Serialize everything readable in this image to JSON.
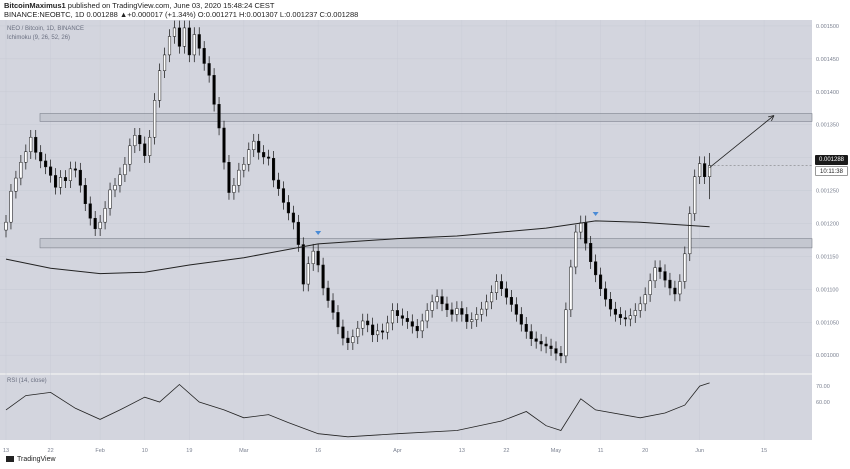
{
  "header": {
    "author": "BitcoinMaximus1",
    "published": "published on TradingView.com, June 03, 2020 15:48:24 CEST",
    "ohlc": "BINANCE:NEOBTC, 1D 0.001288 ▲+0.000017 (+1.34%) O:0.001271 H:0.001307 L:0.001237 C:0.001288"
  },
  "legend": {
    "symbol": "NEO / Bitcoin, 1D, BINANCE",
    "indicator": "Ichimoku (9, 26, 52, 26)",
    "rsi": "RSI (14, close)"
  },
  "price_tags": {
    "last_price": "0.001288",
    "countdown": "10:11:38"
  },
  "footer": {
    "brand": "TradingView"
  },
  "colors": {
    "background": "#d3d5de",
    "candle_up": "#ffffff",
    "candle_down": "#000000",
    "arrow": "#4a8bd6",
    "zone": "#bec1cb"
  },
  "chart_data": {
    "type": "candlestick",
    "symbol": "NEOBTC",
    "interval": "1D",
    "y_axis_ticks": [
      "0.001500",
      "0.001450",
      "0.001400",
      "0.001350",
      "0.001300",
      "0.001250",
      "0.001200",
      "0.001150",
      "0.001100",
      "0.001050",
      "0.001000"
    ],
    "ylim": [
      0.000973,
      0.001509
    ],
    "x_axis_ticks": [
      "13",
      "22",
      "Feb",
      "10",
      "19",
      "Mar",
      "16",
      "Apr",
      "13",
      "22",
      "May",
      "11",
      "20",
      "Jun",
      "15"
    ],
    "x_tick_day_index": [
      0,
      9,
      19,
      28,
      37,
      48,
      63,
      79,
      92,
      101,
      111,
      120,
      129,
      140,
      153
    ],
    "x_date_range": [
      "2020-01-13",
      "2020-06-16"
    ],
    "resistance_zone": [
      0.001355,
      0.001367
    ],
    "support_zone": [
      0.001163,
      0.001177
    ],
    "candles": [
      {
        "date": "2020-01-13",
        "close": 0.001202
      },
      {
        "date": "2020-01-14",
        "close": 0.001249
      },
      {
        "date": "2020-01-15",
        "close": 0.001269
      },
      {
        "date": "2020-01-16",
        "close": 0.001293
      },
      {
        "date": "2020-01-17",
        "close": 0.001309
      },
      {
        "date": "2020-01-18",
        "close": 0.001331
      },
      {
        "date": "2020-01-19",
        "close": 0.001308
      },
      {
        "date": "2020-01-20",
        "close": 0.001295
      },
      {
        "date": "2020-01-21",
        "close": 0.001286
      },
      {
        "date": "2020-01-22",
        "close": 0.001273
      },
      {
        "date": "2020-01-23",
        "close": 0.001255
      },
      {
        "date": "2020-01-24",
        "close": 0.00127
      },
      {
        "date": "2020-01-25",
        "close": 0.001265
      },
      {
        "date": "2020-01-26",
        "close": 0.001283
      },
      {
        "date": "2020-01-27",
        "close": 0.001281
      },
      {
        "date": "2020-01-28",
        "close": 0.001258
      },
      {
        "date": "2020-01-29",
        "close": 0.00123
      },
      {
        "date": "2020-01-30",
        "close": 0.001208
      },
      {
        "date": "2020-01-31",
        "close": 0.001192
      },
      {
        "date": "2020-02-01",
        "close": 0.001202
      },
      {
        "date": "2020-02-02",
        "close": 0.001223
      },
      {
        "date": "2020-02-03",
        "close": 0.001251
      },
      {
        "date": "2020-02-04",
        "close": 0.001258
      },
      {
        "date": "2020-02-05",
        "close": 0.001274
      },
      {
        "date": "2020-02-06",
        "close": 0.00129
      },
      {
        "date": "2020-02-07",
        "close": 0.001318
      },
      {
        "date": "2020-02-08",
        "close": 0.001334
      },
      {
        "date": "2020-02-09",
        "close": 0.001321
      },
      {
        "date": "2020-02-10",
        "close": 0.001303
      },
      {
        "date": "2020-02-11",
        "close": 0.001331
      },
      {
        "date": "2020-02-12",
        "close": 0.001387
      },
      {
        "date": "2020-02-13",
        "close": 0.001432
      },
      {
        "date": "2020-02-14",
        "close": 0.001456
      },
      {
        "date": "2020-02-15",
        "close": 0.001484
      },
      {
        "date": "2020-02-16",
        "close": 0.001497
      },
      {
        "date": "2020-02-17",
        "close": 0.001469
      },
      {
        "date": "2020-02-18",
        "close": 0.001497
      },
      {
        "date": "2020-02-19",
        "close": 0.001456
      },
      {
        "date": "2020-02-20",
        "close": 0.001487
      },
      {
        "date": "2020-02-21",
        "close": 0.001466
      },
      {
        "date": "2020-02-22",
        "close": 0.001443
      },
      {
        "date": "2020-02-23",
        "close": 0.001425
      },
      {
        "date": "2020-02-24",
        "close": 0.001381
      },
      {
        "date": "2020-02-25",
        "close": 0.001345
      },
      {
        "date": "2020-02-26",
        "close": 0.001293
      },
      {
        "date": "2020-02-27",
        "close": 0.001247
      },
      {
        "date": "2020-02-28",
        "close": 0.001258
      },
      {
        "date": "2020-02-29",
        "close": 0.001281
      },
      {
        "date": "2020-03-01",
        "close": 0.00129
      },
      {
        "date": "2020-03-02",
        "close": 0.001312
      },
      {
        "date": "2020-03-03",
        "close": 0.001325
      },
      {
        "date": "2020-03-04",
        "close": 0.001308
      },
      {
        "date": "2020-03-05",
        "close": 0.001301
      },
      {
        "date": "2020-03-06",
        "close": 0.001299
      },
      {
        "date": "2020-03-07",
        "close": 0.001266
      },
      {
        "date": "2020-03-08",
        "close": 0.001253
      },
      {
        "date": "2020-03-09",
        "close": 0.001232
      },
      {
        "date": "2020-03-10",
        "close": 0.001216
      },
      {
        "date": "2020-03-11",
        "close": 0.001202
      },
      {
        "date": "2020-03-12",
        "close": 0.001168
      },
      {
        "date": "2020-03-13",
        "close": 0.001108
      },
      {
        "date": "2020-03-14",
        "close": 0.001139
      },
      {
        "date": "2020-03-15",
        "close": 0.001158
      },
      {
        "date": "2020-03-16",
        "close": 0.001137
      },
      {
        "date": "2020-03-17",
        "close": 0.001102
      },
      {
        "date": "2020-03-18",
        "close": 0.001083
      },
      {
        "date": "2020-03-19",
        "close": 0.001065
      },
      {
        "date": "2020-03-20",
        "close": 0.001043
      },
      {
        "date": "2020-03-21",
        "close": 0.001026
      },
      {
        "date": "2020-03-22",
        "close": 0.001019
      },
      {
        "date": "2020-03-23",
        "close": 0.001028
      },
      {
        "date": "2020-03-24",
        "close": 0.001041
      },
      {
        "date": "2020-03-25",
        "close": 0.001052
      },
      {
        "date": "2020-03-26",
        "close": 0.001046
      },
      {
        "date": "2020-03-27",
        "close": 0.001031
      },
      {
        "date": "2020-03-28",
        "close": 0.001037
      },
      {
        "date": "2020-03-29",
        "close": 0.001035
      },
      {
        "date": "2020-03-30",
        "close": 0.001049
      },
      {
        "date": "2020-03-31",
        "close": 0.001068
      },
      {
        "date": "2020-04-01",
        "close": 0.00106
      },
      {
        "date": "2020-04-02",
        "close": 0.001056
      },
      {
        "date": "2020-04-03",
        "close": 0.001051
      },
      {
        "date": "2020-04-04",
        "close": 0.001044
      },
      {
        "date": "2020-04-05",
        "close": 0.001037
      },
      {
        "date": "2020-04-06",
        "close": 0.001052
      },
      {
        "date": "2020-04-07",
        "close": 0.001068
      },
      {
        "date": "2020-04-08",
        "close": 0.001081
      },
      {
        "date": "2020-04-09",
        "close": 0.001089
      },
      {
        "date": "2020-04-10",
        "close": 0.001078
      },
      {
        "date": "2020-04-11",
        "close": 0.001069
      },
      {
        "date": "2020-04-12",
        "close": 0.001062
      },
      {
        "date": "2020-04-13",
        "close": 0.001071
      },
      {
        "date": "2020-04-14",
        "close": 0.001062
      },
      {
        "date": "2020-04-15",
        "close": 0.001051
      },
      {
        "date": "2020-04-16",
        "close": 0.001054
      },
      {
        "date": "2020-04-17",
        "close": 0.001062
      },
      {
        "date": "2020-04-18",
        "close": 0.00107
      },
      {
        "date": "2020-04-19",
        "close": 0.001081
      },
      {
        "date": "2020-04-20",
        "close": 0.001095
      },
      {
        "date": "2020-04-21",
        "close": 0.001112
      },
      {
        "date": "2020-04-22",
        "close": 0.001101
      },
      {
        "date": "2020-04-23",
        "close": 0.001088
      },
      {
        "date": "2020-04-24",
        "close": 0.001077
      },
      {
        "date": "2020-04-25",
        "close": 0.001062
      },
      {
        "date": "2020-04-26",
        "close": 0.001047
      },
      {
        "date": "2020-04-27",
        "close": 0.001036
      },
      {
        "date": "2020-04-28",
        "close": 0.001025
      },
      {
        "date": "2020-04-29",
        "close": 0.001021
      },
      {
        "date": "2020-04-30",
        "close": 0.001017
      },
      {
        "date": "2020-05-01",
        "close": 0.001014
      },
      {
        "date": "2020-05-02",
        "close": 0.00101
      },
      {
        "date": "2020-05-03",
        "close": 0.001003
      },
      {
        "date": "2020-05-04",
        "close": 0.000999
      },
      {
        "date": "2020-05-05",
        "close": 0.001069
      },
      {
        "date": "2020-05-06",
        "close": 0.001134
      },
      {
        "date": "2020-05-07",
        "close": 0.001187
      },
      {
        "date": "2020-05-08",
        "close": 0.001201
      },
      {
        "date": "2020-05-09",
        "close": 0.00117
      },
      {
        "date": "2020-05-10",
        "close": 0.001142
      },
      {
        "date": "2020-05-11",
        "close": 0.001122
      },
      {
        "date": "2020-05-12",
        "close": 0.001101
      },
      {
        "date": "2020-05-13",
        "close": 0.001085
      },
      {
        "date": "2020-05-14",
        "close": 0.00107
      },
      {
        "date": "2020-05-15",
        "close": 0.001062
      },
      {
        "date": "2020-05-16",
        "close": 0.001057
      },
      {
        "date": "2020-05-17",
        "close": 0.001055
      },
      {
        "date": "2020-05-18",
        "close": 0.00106
      },
      {
        "date": "2020-05-19",
        "close": 0.001068
      },
      {
        "date": "2020-05-20",
        "close": 0.001078
      },
      {
        "date": "2020-05-21",
        "close": 0.001092
      },
      {
        "date": "2020-05-22",
        "close": 0.001113
      },
      {
        "date": "2020-05-23",
        "close": 0.001133
      },
      {
        "date": "2020-05-24",
        "close": 0.001127
      },
      {
        "date": "2020-05-25",
        "close": 0.001114
      },
      {
        "date": "2020-05-26",
        "close": 0.001102
      },
      {
        "date": "2020-05-27",
        "close": 0.001093
      },
      {
        "date": "2020-05-28",
        "close": 0.001112
      },
      {
        "date": "2020-05-29",
        "close": 0.001154
      },
      {
        "date": "2020-05-30",
        "close": 0.001215
      },
      {
        "date": "2020-05-31",
        "close": 0.001271
      },
      {
        "date": "2020-06-01",
        "close": 0.001291
      },
      {
        "date": "2020-06-02",
        "close": 0.001271
      },
      {
        "date": "2020-06-03",
        "open": 0.001271,
        "high": 0.001307,
        "low": 0.001237,
        "close": 0.001288
      }
    ],
    "moving_average_200": [
      {
        "date": "2020-01-13",
        "value": 0.001146
      },
      {
        "date": "2020-01-22",
        "value": 0.001132
      },
      {
        "date": "2020-02-01",
        "value": 0.001124
      },
      {
        "date": "2020-02-10",
        "value": 0.001126
      },
      {
        "date": "2020-02-19",
        "value": 0.001137
      },
      {
        "date": "2020-03-01",
        "value": 0.001148
      },
      {
        "date": "2020-03-16",
        "value": 0.001169
      },
      {
        "date": "2020-04-01",
        "value": 0.001177
      },
      {
        "date": "2020-04-13",
        "value": 0.001181
      },
      {
        "date": "2020-05-01",
        "value": 0.001193
      },
      {
        "date": "2020-05-11",
        "value": 0.001204
      },
      {
        "date": "2020-05-20",
        "value": 0.001202
      },
      {
        "date": "2020-06-03",
        "value": 0.001195
      }
    ],
    "markers": [
      {
        "date": "2020-03-16",
        "shape": "triangle-down",
        "at": 0.001184
      },
      {
        "date": "2020-05-11",
        "shape": "triangle-down",
        "at": 0.001213
      }
    ],
    "projection_arrow": {
      "from": {
        "date": "2020-06-03",
        "value": 0.001285
      },
      "to": {
        "date": "2020-06-16",
        "value": 0.001364
      }
    },
    "rsi": {
      "title": "RSI (14, close)",
      "y_axis_ticks": [
        "70.00",
        "60.00"
      ],
      "ylim": [
        36,
        77
      ],
      "values": [
        {
          "date": "2020-01-13",
          "value": 55
        },
        {
          "date": "2020-01-17",
          "value": 64
        },
        {
          "date": "2020-01-22",
          "value": 66
        },
        {
          "date": "2020-01-27",
          "value": 56
        },
        {
          "date": "2020-02-01",
          "value": 49
        },
        {
          "date": "2020-02-05",
          "value": 55
        },
        {
          "date": "2020-02-10",
          "value": 63
        },
        {
          "date": "2020-02-13",
          "value": 60
        },
        {
          "date": "2020-02-17",
          "value": 71
        },
        {
          "date": "2020-02-21",
          "value": 60
        },
        {
          "date": "2020-02-26",
          "value": 55
        },
        {
          "date": "2020-03-01",
          "value": 50
        },
        {
          "date": "2020-03-06",
          "value": 52
        },
        {
          "date": "2020-03-10",
          "value": 47
        },
        {
          "date": "2020-03-16",
          "value": 40
        },
        {
          "date": "2020-03-22",
          "value": 38
        },
        {
          "date": "2020-04-01",
          "value": 40
        },
        {
          "date": "2020-04-13",
          "value": 42
        },
        {
          "date": "2020-04-22",
          "value": 48
        },
        {
          "date": "2020-04-27",
          "value": 54
        },
        {
          "date": "2020-05-01",
          "value": 45
        },
        {
          "date": "2020-05-04",
          "value": 42
        },
        {
          "date": "2020-05-08",
          "value": 62
        },
        {
          "date": "2020-05-11",
          "value": 55
        },
        {
          "date": "2020-05-20",
          "value": 50
        },
        {
          "date": "2020-05-25",
          "value": 53
        },
        {
          "date": "2020-05-29",
          "value": 58
        },
        {
          "date": "2020-06-01",
          "value": 70
        },
        {
          "date": "2020-06-03",
          "value": 72
        }
      ]
    }
  }
}
